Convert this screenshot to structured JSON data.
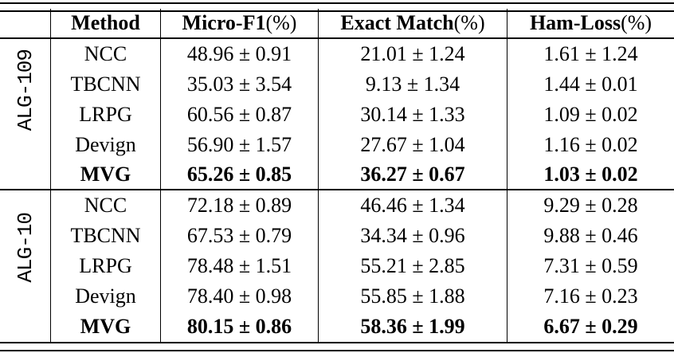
{
  "table": {
    "headers": [
      {
        "label": "Method",
        "suffix": ""
      },
      {
        "label": "Micro-F1",
        "suffix": "(%)"
      },
      {
        "label": "Exact Match",
        "suffix": "(%)"
      },
      {
        "label": "Ham-Loss",
        "suffix": "(%)"
      }
    ],
    "groups": [
      {
        "label": "ALG-109",
        "rows": [
          [
            "NCC",
            "48.96 ± 0.91",
            "21.01 ± 1.24",
            "1.61 ± 1.24"
          ],
          [
            "TBCNN",
            "35.03 ± 3.54",
            "9.13 ± 1.34",
            "1.44 ± 0.01"
          ],
          [
            "LRPG",
            "60.56 ± 0.87",
            "30.14 ± 1.33",
            "1.09 ± 0.02"
          ],
          [
            "Devign",
            "56.90 ± 1.57",
            "27.67 ± 1.04",
            "1.16 ± 0.02"
          ],
          [
            "MVG",
            "65.26 ± 0.85",
            "36.27 ± 0.67",
            "1.03 ± 0.02"
          ]
        ],
        "best_method": "MVG"
      },
      {
        "label": "ALG-10",
        "rows": [
          [
            "NCC",
            "72.18 ± 0.89",
            "46.46 ± 1.34",
            "9.29 ± 0.28"
          ],
          [
            "TBCNN",
            "67.53 ± 0.79",
            "34.34 ± 0.96",
            "9.88 ± 0.46"
          ],
          [
            "LRPG",
            "78.48 ± 1.51",
            "55.21 ± 2.85",
            "7.31 ± 0.59"
          ],
          [
            "Devign",
            "78.40 ± 0.98",
            "55.85 ± 1.88",
            "7.16 ± 0.23"
          ],
          [
            "MVG",
            "80.15 ± 0.86",
            "58.36 ± 1.99",
            "6.67 ± 0.29"
          ]
        ],
        "best_method": "MVG"
      }
    ]
  },
  "colors": {
    "text": "#000000",
    "background": "#ffffff",
    "rule": "#000000"
  }
}
